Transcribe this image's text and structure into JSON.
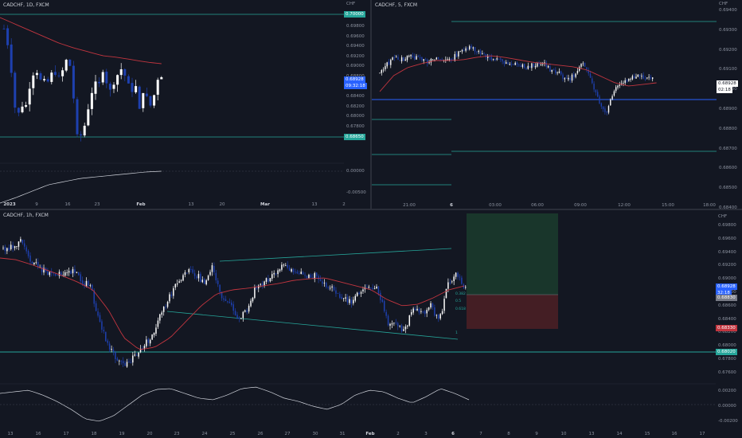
{
  "panels": {
    "tl": {
      "title": "CADCHF, 1D, FXCM",
      "currency": "CHF",
      "y_ticks": [
        "0.69800",
        "0.69600",
        "0.69400",
        "0.69200",
        "0.69000",
        "0.68800",
        "0.68600",
        "0.68400",
        "0.68200",
        "0.68000",
        "0.67800"
      ],
      "osc_ticks": [
        "0.00000",
        "-0.00500"
      ],
      "x_ticks": [
        "2023",
        "9",
        "16",
        "23",
        "Feb",
        "13",
        "20",
        "Mar",
        "13",
        "2"
      ],
      "price_labels": {
        "upper": "0.70000",
        "current": "0.68928",
        "countdown": "09:32:18",
        "lower": "0.68650"
      }
    },
    "tr": {
      "title": "CADCHF, 5, FXCM",
      "currency": "CHF",
      "y_ticks": [
        "0.69400",
        "0.69300",
        "0.69200",
        "0.69100",
        "0.69000",
        "0.68900",
        "0.68800",
        "0.68700",
        "0.68600",
        "0.68500",
        "0.68400",
        "0.68300",
        "0.68200"
      ],
      "x_ticks": [
        "21:00",
        "6",
        "03:00",
        "06:00",
        "09:00",
        "12:00",
        "15:00",
        "18:00"
      ],
      "price_labels": {
        "current": "0.68928",
        "countdown": "02:18"
      }
    },
    "bottom": {
      "title": "CADCHF, 1h, FXCM",
      "currency": "CHF",
      "y_ticks": [
        "0.69800",
        "0.69600",
        "0.69400",
        "0.69200",
        "0.69000",
        "0.68800",
        "0.68600",
        "0.68400",
        "0.68200",
        "0.68000",
        "0.67800",
        "0.67600"
      ],
      "osc_ticks": [
        "0.00200",
        "0.00000",
        "-0.00200"
      ],
      "x_ticks": [
        "13",
        "16",
        "17",
        "18",
        "19",
        "20",
        "23",
        "24",
        "25",
        "26",
        "27",
        "30",
        "31",
        "Feb",
        "2",
        "3",
        "6",
        "7",
        "8",
        "9",
        "10",
        "13",
        "14",
        "15",
        "16",
        "17"
      ],
      "price_labels": {
        "current": "0.68928",
        "countdown": "32:18",
        "entry": "0.68830",
        "stop": "0.68330",
        "lower": "0.68020"
      },
      "annotations": [
        "0.382",
        "0.5",
        "0.618",
        "1"
      ]
    }
  },
  "colors": {
    "background": "#131722",
    "up_candle": "#ffffff",
    "down_candle": "#1e40af",
    "ma_line": "#c2353f",
    "level_line": "#26a69a",
    "blue_level": "#2962ff",
    "target_zone": "#1b3a2c",
    "stop_zone": "#4a1f25"
  }
}
